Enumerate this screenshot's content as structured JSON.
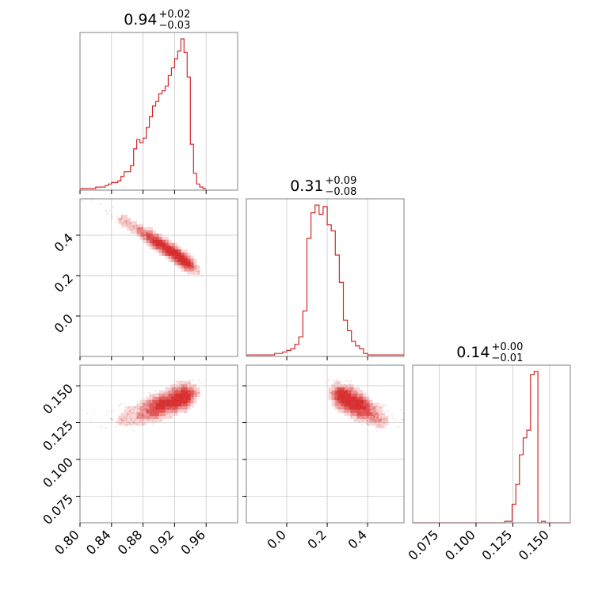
{
  "chart_data": {
    "type": "corner",
    "color": "#d62728",
    "grid": true,
    "parameters": [
      {
        "range": [
          0.8,
          1.0
        ],
        "ticks": [
          0.8,
          0.84,
          0.88,
          0.92,
          0.96
        ],
        "tick_labels": [
          "0.80",
          "0.84",
          "0.88",
          "0.92",
          "0.96"
        ]
      },
      {
        "range": [
          -0.2,
          0.58
        ],
        "ticks": [
          0.0,
          0.2,
          0.4
        ],
        "tick_labels": [
          "0.0",
          "0.2",
          "0.4"
        ]
      },
      {
        "range": [
          0.057,
          0.164
        ],
        "ticks": [
          0.075,
          0.1,
          0.125,
          0.15
        ],
        "tick_labels": [
          "0.075",
          "0.100",
          "0.125",
          "0.150"
        ]
      }
    ],
    "titles": [
      {
        "value": "0.94",
        "plus": "+0.02",
        "minus": "−0.03"
      },
      {
        "value": "0.31",
        "plus": "+0.09",
        "minus": "−0.08"
      },
      {
        "value": "0.14",
        "plus": "+0.00",
        "minus": "−0.01"
      }
    ],
    "histograms": [
      {
        "edges_start": 0.8,
        "bin_width": 0.004,
        "counts": [
          1,
          1,
          1,
          1,
          1,
          2,
          2,
          2,
          3,
          4,
          5,
          5,
          6,
          9,
          12,
          12,
          16,
          27,
          33,
          31,
          34,
          41,
          48,
          55,
          58,
          63,
          65,
          68,
          75,
          80,
          86,
          91,
          99,
          90,
          74,
          30,
          11,
          4,
          2,
          1
        ]
      },
      {
        "edges_start": -0.2,
        "bin_width": 0.02,
        "counts": [
          1,
          1,
          1,
          1,
          1,
          1,
          1,
          2,
          2,
          3,
          4,
          5,
          8,
          13,
          30,
          78,
          95,
          100,
          94,
          99,
          87,
          83,
          67,
          49,
          24,
          17,
          10,
          7,
          5,
          2,
          1,
          1,
          1,
          1,
          1,
          1,
          1,
          1,
          1
        ]
      },
      {
        "edges_start": 0.057,
        "bin_width": 0.0025,
        "counts": [
          0,
          0,
          0,
          0,
          0,
          0,
          0,
          0,
          0,
          0,
          0,
          0,
          0,
          0,
          0,
          0,
          0,
          0,
          0,
          0,
          0,
          0,
          0,
          0,
          0,
          1,
          1,
          12,
          25,
          44,
          55,
          60,
          96,
          98,
          0,
          1,
          0,
          0,
          0,
          0,
          0,
          0,
          0
        ]
      }
    ],
    "joint_panels": [
      {
        "x_param": 0,
        "y_param": 1,
        "shape": "curved ridge from (0.82, 0.55) to (0.98, 0.15)"
      },
      {
        "x_param": 0,
        "y_param": 2,
        "peak": [
          0.955,
          0.148
        ],
        "tail_to": [
          0.85,
          0.13
        ]
      },
      {
        "x_param": 1,
        "y_param": 2,
        "peak": [
          0.27,
          0.148
        ],
        "tail_to": [
          0.55,
          0.13
        ]
      }
    ]
  }
}
